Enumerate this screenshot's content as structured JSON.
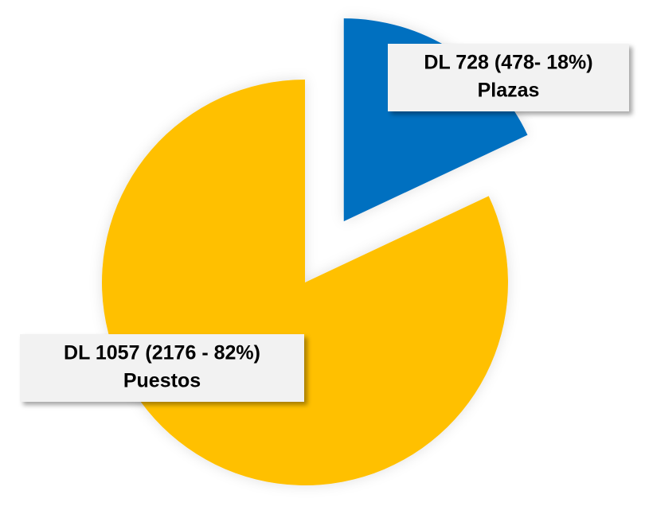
{
  "chart_data": {
    "type": "pie",
    "categories": [
      "DL 728 (478- 18%)",
      "DL 1057 (2176 - 82%)"
    ],
    "sublabels": [
      "Plazas",
      "Puestos"
    ],
    "values": [
      18,
      82
    ],
    "colors": [
      "#0070c0",
      "#ffc000"
    ],
    "explode": [
      true,
      false
    ]
  }
}
